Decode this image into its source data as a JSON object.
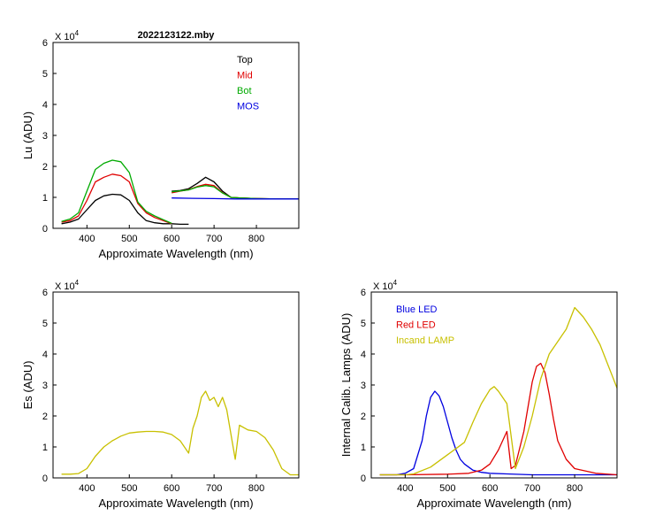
{
  "chart_data": [
    {
      "id": "top",
      "type": "line",
      "title": "2022123122.mby",
      "xlabel": "Approximate Wavelength (nm)",
      "ylabel": "Lu (ADU)",
      "multiplier": "X 10",
      "multiplier_exp": "4",
      "xlim": [
        320,
        900
      ],
      "ylim": [
        0,
        60000
      ],
      "xticks": [
        400,
        500,
        600,
        700,
        800
      ],
      "yticks": [
        0,
        10000,
        20000,
        30000,
        40000,
        50000,
        60000
      ],
      "ytick_labels": [
        "0",
        "1",
        "2",
        "3",
        "4",
        "5",
        "6"
      ],
      "xtick_labels": [
        "400",
        "500",
        "600",
        "700",
        "800"
      ],
      "legend": [
        {
          "name": "Top",
          "color": "#000000"
        },
        {
          "name": "Mid",
          "color": "#e00000"
        },
        {
          "name": "Bot",
          "color": "#00aa00"
        },
        {
          "name": "MOS",
          "color": "#0000e0"
        }
      ],
      "series": [
        {
          "name": "Top",
          "color": "#000000",
          "x": [
            340,
            360,
            380,
            400,
            420,
            440,
            460,
            480,
            500,
            520,
            540,
            560,
            580,
            600,
            620,
            640
          ],
          "y": [
            1500,
            2000,
            3000,
            6000,
            9000,
            10500,
            11000,
            10800,
            9000,
            5000,
            2500,
            1800,
            1500,
            1500,
            1300,
            1300
          ]
        },
        {
          "name": "Mid",
          "color": "#e00000",
          "x": [
            340,
            360,
            380,
            400,
            420,
            440,
            460,
            480,
            500,
            520,
            540,
            560,
            580,
            600
          ],
          "y": [
            2000,
            2500,
            4000,
            9000,
            15000,
            16500,
            17500,
            17000,
            15000,
            8000,
            5000,
            3500,
            2500,
            1500
          ]
        },
        {
          "name": "Bot",
          "color": "#00aa00",
          "x": [
            340,
            360,
            380,
            400,
            420,
            440,
            460,
            480,
            500,
            520,
            540,
            560,
            580,
            600
          ],
          "y": [
            2200,
            3000,
            5000,
            12000,
            19000,
            21000,
            22000,
            21500,
            18000,
            8500,
            5500,
            4000,
            2800,
            1600
          ]
        },
        {
          "name": "Top-red",
          "color": "#000000",
          "x": [
            600,
            620,
            640,
            660,
            680,
            700,
            720,
            740,
            760,
            800,
            850,
            900
          ],
          "y": [
            12000,
            12200,
            12800,
            14500,
            16500,
            15000,
            12000,
            10000,
            9800,
            9600,
            9500,
            9500
          ]
        },
        {
          "name": "Mid-red",
          "color": "#e00000",
          "x": [
            600,
            620,
            640,
            660,
            680,
            700,
            720,
            740,
            760,
            800,
            850,
            900
          ],
          "y": [
            11500,
            12000,
            12500,
            13500,
            14200,
            13800,
            11500,
            10000,
            9800,
            9600,
            9500,
            9500
          ]
        },
        {
          "name": "Bot-red",
          "color": "#00aa00",
          "x": [
            600,
            620,
            640,
            660,
            680,
            700,
            720,
            740,
            760,
            800,
            850,
            900
          ],
          "y": [
            11800,
            12100,
            12400,
            13300,
            13800,
            13400,
            11400,
            10000,
            9800,
            9600,
            9500,
            9500
          ]
        },
        {
          "name": "MOS",
          "color": "#0000e0",
          "x": [
            600,
            650,
            700,
            750,
            800,
            850,
            900
          ],
          "y": [
            9800,
            9700,
            9600,
            9500,
            9500,
            9500,
            9500
          ]
        }
      ]
    },
    {
      "id": "es",
      "type": "line",
      "title": "",
      "xlabel": "Approximate Wavelength (nm)",
      "ylabel": "Es  (ADU)",
      "multiplier": "X 10",
      "multiplier_exp": "4",
      "xlim": [
        320,
        900
      ],
      "ylim": [
        0,
        60000
      ],
      "xticks": [
        400,
        500,
        600,
        700,
        800
      ],
      "yticks": [
        0,
        10000,
        20000,
        30000,
        40000,
        50000,
        60000
      ],
      "ytick_labels": [
        "0",
        "1",
        "2",
        "3",
        "4",
        "5",
        "6"
      ],
      "xtick_labels": [
        "400",
        "500",
        "600",
        "700",
        "800"
      ],
      "series": [
        {
          "name": "Es",
          "color": "#c8c000",
          "x": [
            340,
            360,
            380,
            400,
            420,
            440,
            460,
            480,
            500,
            520,
            540,
            560,
            580,
            600,
            620,
            640,
            650,
            660,
            670,
            680,
            690,
            700,
            710,
            720,
            730,
            740,
            750,
            760,
            780,
            800,
            820,
            840,
            860,
            880,
            900
          ],
          "y": [
            1200,
            1200,
            1400,
            3000,
            7000,
            10000,
            12000,
            13500,
            14500,
            14800,
            15000,
            15000,
            14800,
            14000,
            12000,
            8000,
            16000,
            20000,
            26000,
            28000,
            25000,
            26000,
            23000,
            26000,
            22000,
            14000,
            6000,
            17000,
            15500,
            15000,
            13000,
            9000,
            3000,
            1000,
            1000
          ]
        }
      ]
    },
    {
      "id": "calib",
      "type": "line",
      "title": "",
      "xlabel": "Approximate Wavelength (nm)",
      "ylabel": "Internal Calib. Lamps  (ADU)",
      "multiplier": "X 10",
      "multiplier_exp": "4",
      "xlim": [
        320,
        900
      ],
      "ylim": [
        0,
        60000
      ],
      "xticks": [
        400,
        500,
        600,
        700,
        800
      ],
      "yticks": [
        0,
        10000,
        20000,
        30000,
        40000,
        50000,
        60000
      ],
      "ytick_labels": [
        "0",
        "1",
        "2",
        "3",
        "4",
        "5",
        "6"
      ],
      "xtick_labels": [
        "400",
        "500",
        "600",
        "700",
        "800"
      ],
      "legend": [
        {
          "name": "Blue LED",
          "color": "#0000e0"
        },
        {
          "name": "Red LED",
          "color": "#e00000"
        },
        {
          "name": "Incand LAMP",
          "color": "#c8c000"
        }
      ],
      "series": [
        {
          "name": "Blue LED",
          "color": "#0000e0",
          "x": [
            340,
            380,
            400,
            420,
            440,
            450,
            460,
            470,
            480,
            490,
            500,
            510,
            520,
            530,
            540,
            560,
            580,
            600,
            640,
            700,
            800,
            900
          ],
          "y": [
            1000,
            1000,
            1500,
            3000,
            12000,
            20000,
            26000,
            28000,
            26500,
            23000,
            18000,
            13000,
            9000,
            6000,
            4500,
            2500,
            1800,
            1500,
            1300,
            1000,
            1000,
            1000
          ]
        },
        {
          "name": "Red LED",
          "color": "#e00000",
          "x": [
            340,
            400,
            500,
            550,
            580,
            600,
            620,
            640,
            650,
            660,
            680,
            700,
            710,
            720,
            730,
            740,
            750,
            760,
            780,
            800,
            850,
            900
          ],
          "y": [
            1000,
            1000,
            1200,
            1500,
            2500,
            4500,
            9000,
            15000,
            3000,
            4000,
            15000,
            31000,
            36000,
            37000,
            34000,
            27000,
            19000,
            12000,
            6000,
            3000,
            1500,
            1000
          ]
        },
        {
          "name": "Incand LAMP",
          "color": "#c8c000",
          "x": [
            340,
            400,
            420,
            460,
            500,
            520,
            540,
            560,
            580,
            600,
            610,
            620,
            640,
            660,
            680,
            700,
            720,
            740,
            760,
            780,
            800,
            820,
            840,
            860,
            880,
            900
          ],
          "y": [
            1000,
            1000,
            1300,
            3500,
            7500,
            9500,
            11500,
            18000,
            24000,
            28500,
            29500,
            28000,
            24000,
            3000,
            10000,
            20000,
            32000,
            40000,
            44000,
            48000,
            55000,
            52000,
            48000,
            43000,
            36000,
            29000
          ]
        }
      ]
    }
  ]
}
